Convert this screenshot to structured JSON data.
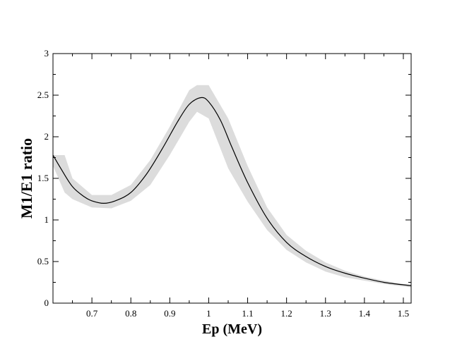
{
  "chart_data": {
    "type": "line",
    "title": "",
    "xlabel": "Ep  (MeV)",
    "ylabel": "M1/E1 ratio",
    "xlim": [
      0.6,
      1.52
    ],
    "ylim": [
      0,
      3
    ],
    "xticks": [
      0.7,
      0.8,
      0.9,
      1,
      1.1,
      1.2,
      1.3,
      1.4,
      1.5
    ],
    "xtick_labels": [
      "0.7",
      "0.8",
      "0.9",
      "1",
      "1.1",
      "1.2",
      "1.3",
      "1.4",
      "1.5"
    ],
    "yticks": [
      0,
      0.5,
      1,
      1.5,
      2,
      2.5,
      3
    ],
    "ytick_labels": [
      "0",
      "0.5",
      "1",
      "1.5",
      "2",
      "2.5",
      "3"
    ],
    "grid": false,
    "series": [
      {
        "x": [
          0.6,
          0.62,
          0.65,
          0.68,
          0.7,
          0.73,
          0.76,
          0.8,
          0.84,
          0.88,
          0.92,
          0.95,
          0.98,
          1.0,
          1.03,
          1.06,
          1.1,
          1.15,
          1.2,
          1.25,
          1.3,
          1.35,
          1.4,
          1.45,
          1.5,
          1.52
        ],
        "y": [
          1.78,
          1.62,
          1.4,
          1.28,
          1.23,
          1.2,
          1.23,
          1.33,
          1.55,
          1.85,
          2.18,
          2.39,
          2.47,
          2.42,
          2.2,
          1.87,
          1.45,
          1.02,
          0.73,
          0.56,
          0.44,
          0.36,
          0.3,
          0.25,
          0.22,
          0.21
        ],
        "color": "#000000"
      }
    ],
    "band": {
      "x": [
        0.6,
        0.63,
        0.65,
        0.7,
        0.75,
        0.8,
        0.85,
        0.9,
        0.95,
        0.97,
        1.0,
        1.05,
        1.1,
        1.15,
        1.2,
        1.25,
        1.3,
        1.35,
        1.4,
        1.45,
        1.5,
        1.52
      ],
      "upper": [
        1.78,
        1.78,
        1.5,
        1.3,
        1.3,
        1.42,
        1.72,
        2.12,
        2.56,
        2.62,
        2.62,
        2.22,
        1.65,
        1.15,
        0.82,
        0.63,
        0.49,
        0.39,
        0.32,
        0.27,
        0.23,
        0.22
      ],
      "lower": [
        1.65,
        1.33,
        1.25,
        1.15,
        1.14,
        1.23,
        1.42,
        1.78,
        2.18,
        2.3,
        2.22,
        1.62,
        1.22,
        0.88,
        0.64,
        0.49,
        0.38,
        0.31,
        0.27,
        0.23,
        0.2,
        0.19
      ],
      "color": "#dcdcdc"
    }
  }
}
